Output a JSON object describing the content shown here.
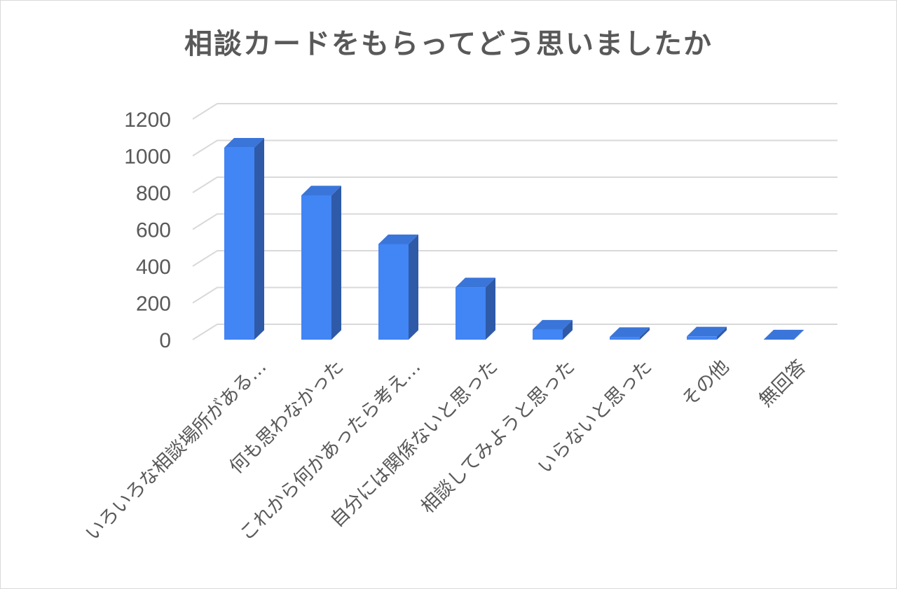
{
  "chart_data": {
    "type": "bar",
    "title": "相談カードをもらってどう思いましたか",
    "categories": [
      "いろいろな相談場所がある…",
      "何も思わなかった",
      "これから何かあったら考え…",
      "自分には関係ないと思った",
      "相談してみようと思った",
      "いらないと思った",
      "その他",
      "無回答"
    ],
    "values": [
      1045,
      785,
      520,
      285,
      55,
      15,
      18,
      2
    ],
    "y_ticks": [
      "0",
      "200",
      "400",
      "600",
      "800",
      "1000",
      "1200"
    ],
    "ylim": [
      0,
      1200
    ],
    "xlabel": "",
    "ylabel": "",
    "grid": true,
    "legend": "none",
    "style": "3d-column",
    "colors": {
      "bar_front": "#4285f4",
      "bar_side": "#2e5aa8",
      "bar_top": "#3a75d9",
      "grid": "#d9d9d9",
      "text": "#595959"
    }
  }
}
